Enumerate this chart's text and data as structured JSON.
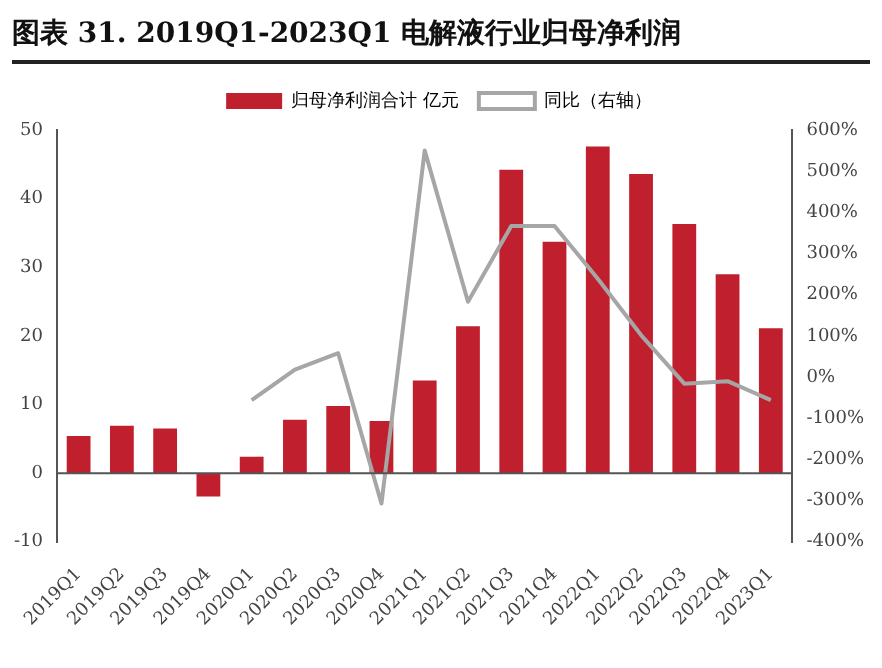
{
  "chart_data": {
    "type": "bar",
    "title": "图表 31. 2019Q1-2023Q1 电解液行业归母净利润",
    "categories": [
      "2019Q1",
      "2019Q2",
      "2019Q3",
      "2019Q4",
      "2020Q1",
      "2020Q2",
      "2020Q3",
      "2020Q4",
      "2021Q1",
      "2021Q2",
      "2021Q3",
      "2021Q4",
      "2022Q1",
      "2022Q2",
      "2022Q3",
      "2022Q4",
      "2023Q1"
    ],
    "series": [
      {
        "name": "归母净利润合计 亿元",
        "color": "#c0202e",
        "values": [
          5.4,
          6.9,
          6.5,
          -3.4,
          2.4,
          7.8,
          9.8,
          7.6,
          13.5,
          21.4,
          44.2,
          33.7,
          47.6,
          43.6,
          36.3,
          29.0,
          21.1
        ]
      },
      {
        "name": "同比（右轴）",
        "type": "line",
        "axis": "y2",
        "color": "#a6a6a6",
        "values": [
          null,
          null,
          null,
          null,
          -56,
          18,
          58,
          -307,
          550,
          183,
          367,
          367,
          239,
          102,
          -16,
          -10,
          -56
        ]
      }
    ],
    "ylim": [
      -10,
      50
    ],
    "yticks": [
      -10,
      0,
      10,
      20,
      30,
      40,
      50
    ],
    "y2lim": [
      -400,
      600
    ],
    "y2ticks": [
      {
        "value": -400,
        "label": "-400%"
      },
      {
        "value": -300,
        "label": "-300%"
      },
      {
        "value": -200,
        "label": "-200%"
      },
      {
        "value": -100,
        "label": "-100%"
      },
      {
        "value": 0,
        "label": "0%"
      },
      {
        "value": 100,
        "label": "100%"
      },
      {
        "value": 200,
        "label": "200%"
      },
      {
        "value": 300,
        "label": "300%"
      },
      {
        "value": 400,
        "label": "400%"
      },
      {
        "value": 500,
        "label": "500%"
      },
      {
        "value": 600,
        "label": "600%"
      }
    ],
    "legend": "top",
    "marker": "none"
  }
}
